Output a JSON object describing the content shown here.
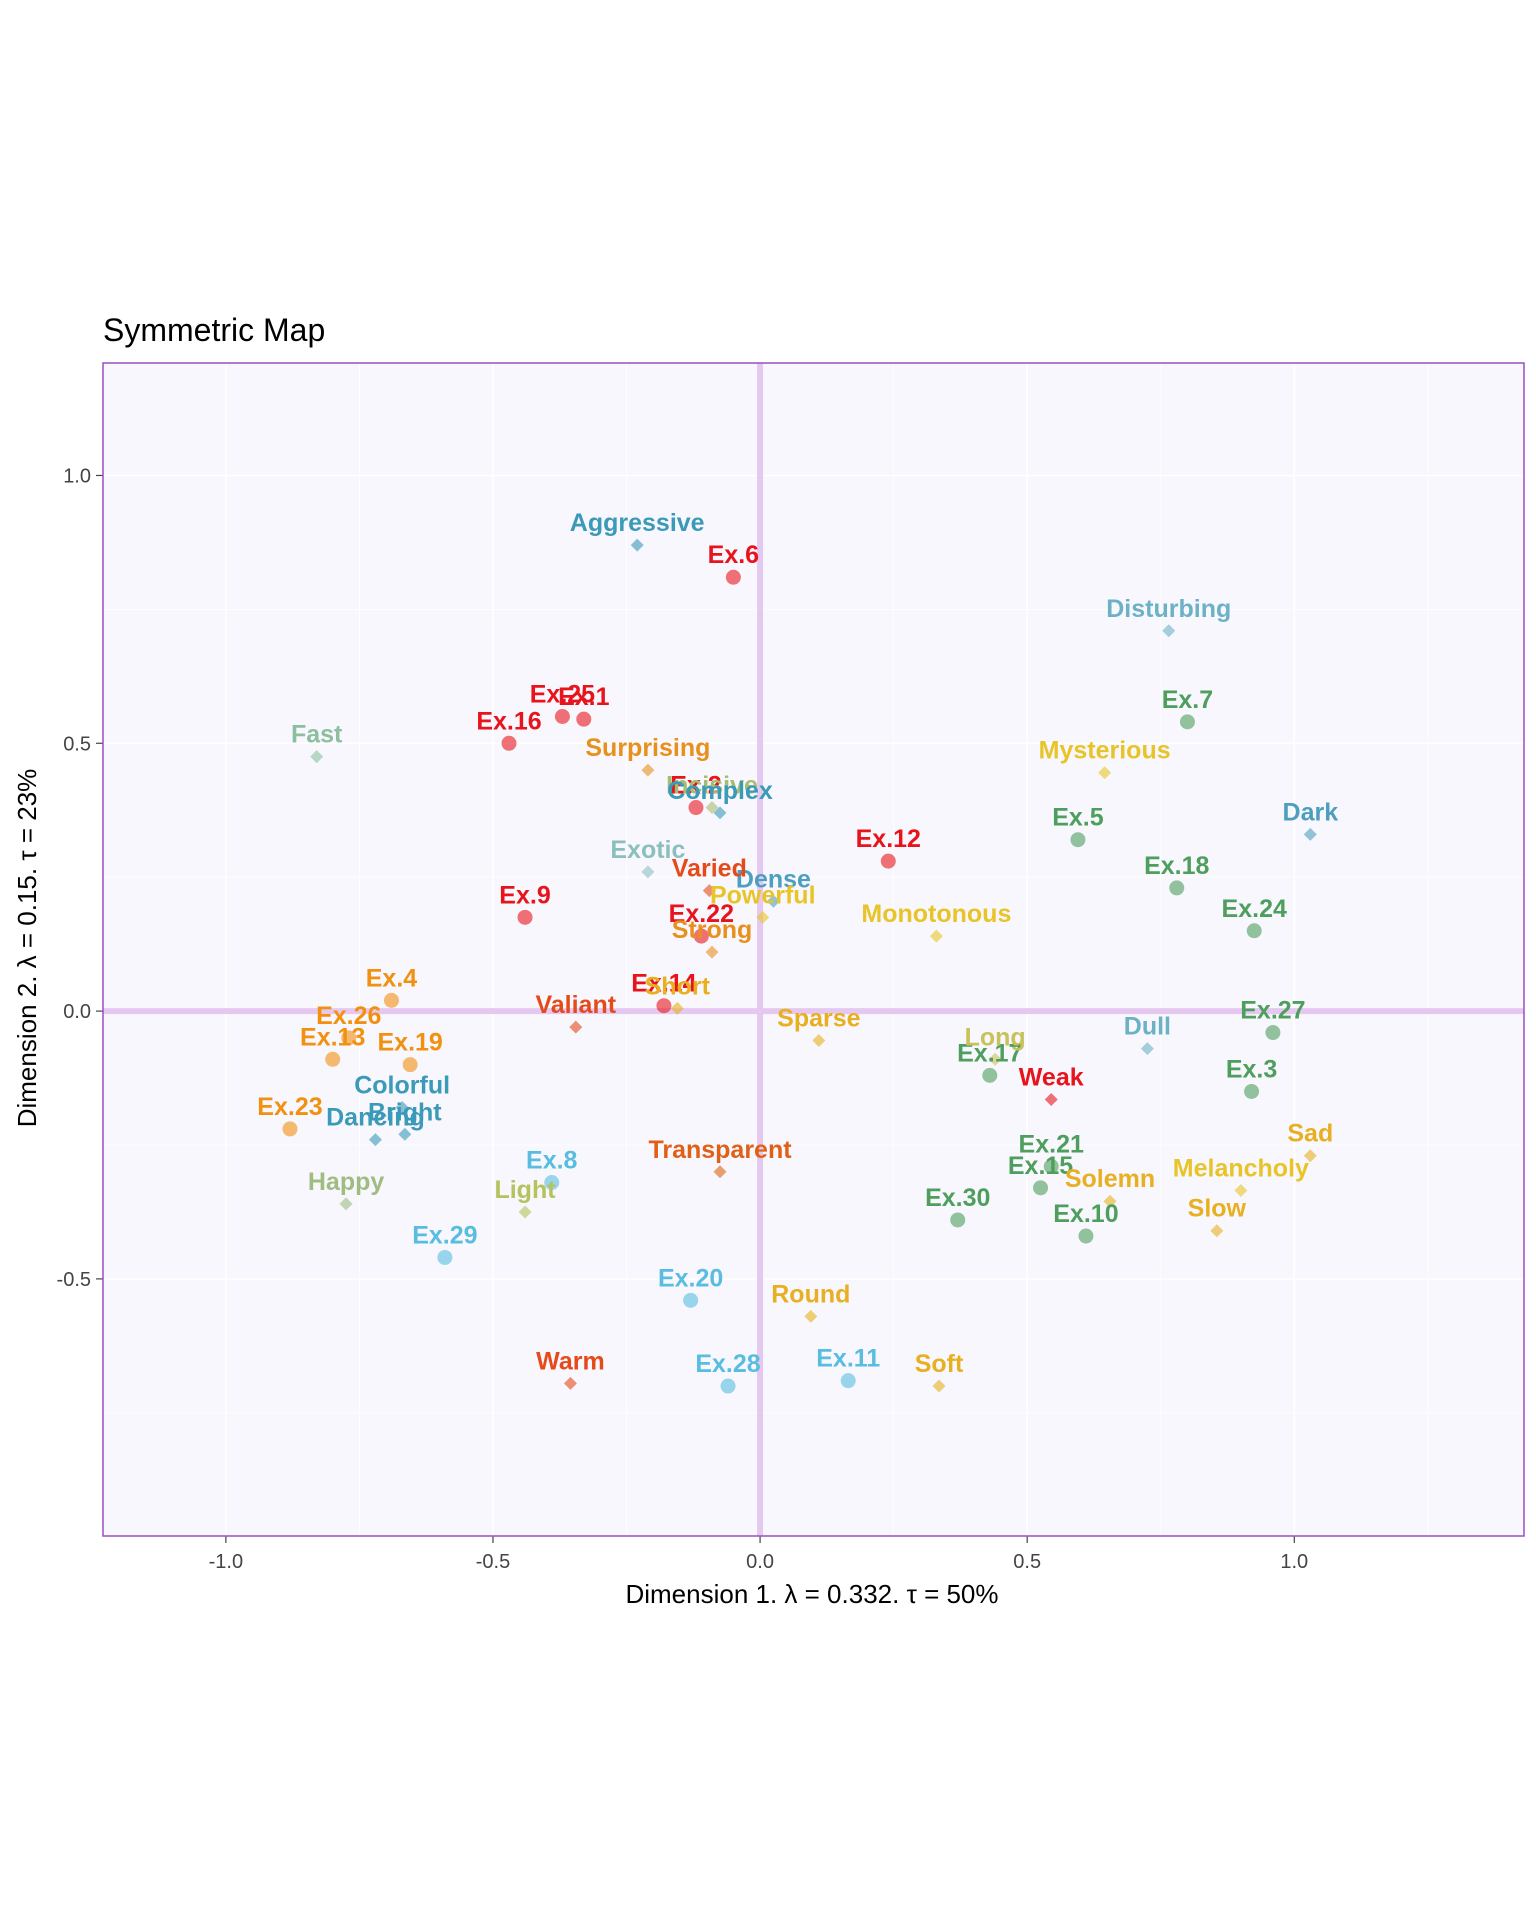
{
  "chart_data": {
    "type": "scatter",
    "title": "Symmetric Map",
    "xlabel": "Dimension 1.   λ = 0.332.  τ = 50%",
    "ylabel": "Dimension 2.   λ = 0.15.  τ = 23%",
    "xlim": [
      -1.23,
      1.43
    ],
    "ylim": [
      -0.98,
      1.21
    ],
    "x_ticks": [
      -1.0,
      -0.5,
      0.0,
      0.5,
      1.0
    ],
    "y_ticks": [
      -0.5,
      0.0,
      0.5,
      1.0
    ],
    "x_tick_labels": [
      "-1.0",
      "-0.5",
      "0.0",
      "0.5",
      "1.0"
    ],
    "y_tick_labels": [
      "-0.5",
      "0.0",
      "0.5",
      "1.0"
    ],
    "grid": true,
    "legend": "none",
    "reference_lines": {
      "x": 0,
      "y": 0
    },
    "colors": {
      "panel_background": "#f8f7fd",
      "panel_border": "#9a4fc4",
      "grid": "#ffffff",
      "reference_line": "#e5c8f0"
    },
    "series": [
      {
        "marker": "circle",
        "points": [
          {
            "label": "Ex.6",
            "x": -0.05,
            "y": 0.81,
            "color": "#e8141c"
          },
          {
            "label": "Ex.25",
            "x": -0.37,
            "y": 0.55,
            "color": "#e8141c"
          },
          {
            "label": "Ex.1",
            "x": -0.33,
            "y": 0.545,
            "color": "#e8141c"
          },
          {
            "label": "Ex.16",
            "x": -0.47,
            "y": 0.5,
            "color": "#e8141c"
          },
          {
            "label": "Ex.2",
            "x": -0.12,
            "y": 0.38,
            "color": "#e8141c"
          },
          {
            "label": "Ex.12",
            "x": 0.24,
            "y": 0.28,
            "color": "#e8141c"
          },
          {
            "label": "Ex.9",
            "x": -0.44,
            "y": 0.175,
            "color": "#e8141c"
          },
          {
            "label": "Ex.22",
            "x": -0.11,
            "y": 0.14,
            "color": "#e8141c"
          },
          {
            "label": "Ex.14",
            "x": -0.18,
            "y": 0.01,
            "color": "#e8141c"
          },
          {
            "label": "Ex.4",
            "x": -0.69,
            "y": 0.02,
            "color": "#f2900f"
          },
          {
            "label": "Ex.26",
            "x": -0.77,
            "y": -0.05,
            "color": "#f2900f"
          },
          {
            "label": "Ex.13",
            "x": -0.8,
            "y": -0.09,
            "color": "#f2900f"
          },
          {
            "label": "Ex.19",
            "x": -0.655,
            "y": -0.1,
            "color": "#f2900f"
          },
          {
            "label": "Ex.23",
            "x": -0.88,
            "y": -0.22,
            "color": "#f2900f"
          },
          {
            "label": "Ex.8",
            "x": -0.39,
            "y": -0.32,
            "color": "#58bde0"
          },
          {
            "label": "Ex.29",
            "x": -0.59,
            "y": -0.46,
            "color": "#58bde0"
          },
          {
            "label": "Ex.20",
            "x": -0.13,
            "y": -0.54,
            "color": "#58bde0"
          },
          {
            "label": "Ex.28",
            "x": -0.06,
            "y": -0.7,
            "color": "#58bde0"
          },
          {
            "label": "Ex.11",
            "x": 0.165,
            "y": -0.69,
            "color": "#58bde0"
          },
          {
            "label": "Ex.7",
            "x": 0.8,
            "y": 0.54,
            "color": "#4e9e5e"
          },
          {
            "label": "Ex.5",
            "x": 0.595,
            "y": 0.32,
            "color": "#4e9e5e"
          },
          {
            "label": "Ex.18",
            "x": 0.78,
            "y": 0.23,
            "color": "#4e9e5e"
          },
          {
            "label": "Ex.24",
            "x": 0.925,
            "y": 0.15,
            "color": "#4e9e5e"
          },
          {
            "label": "Ex.27",
            "x": 0.96,
            "y": -0.04,
            "color": "#4e9e5e"
          },
          {
            "label": "Ex.17",
            "x": 0.43,
            "y": -0.12,
            "color": "#4e9e5e"
          },
          {
            "label": "Ex.3",
            "x": 0.92,
            "y": -0.15,
            "color": "#4e9e5e"
          },
          {
            "label": "Ex.21",
            "x": 0.545,
            "y": -0.29,
            "color": "#4e9e5e"
          },
          {
            "label": "Ex.15",
            "x": 0.525,
            "y": -0.33,
            "color": "#4e9e5e"
          },
          {
            "label": "Ex.30",
            "x": 0.37,
            "y": -0.39,
            "color": "#4e9e5e"
          },
          {
            "label": "Ex.10",
            "x": 0.61,
            "y": -0.42,
            "color": "#4e9e5e"
          }
        ]
      },
      {
        "marker": "diamond",
        "points": [
          {
            "label": "Aggressive",
            "x": -0.23,
            "y": 0.87,
            "color": "#3a9ab8"
          },
          {
            "label": "Disturbing",
            "x": 0.765,
            "y": 0.71,
            "color": "#6cb2c6"
          },
          {
            "label": "Fast",
            "x": -0.83,
            "y": 0.475,
            "color": "#8cbf9e"
          },
          {
            "label": "Surprising",
            "x": -0.21,
            "y": 0.45,
            "color": "#e8901c"
          },
          {
            "label": "Incisive",
            "x": -0.09,
            "y": 0.38,
            "color": "#a7bd6e"
          },
          {
            "label": "Mysterious",
            "x": 0.645,
            "y": 0.445,
            "color": "#e8c428"
          },
          {
            "label": "Dark",
            "x": 1.03,
            "y": 0.33,
            "color": "#4c9fbf"
          },
          {
            "label": "Complex",
            "x": -0.075,
            "y": 0.37,
            "color": "#3a9ab8"
          },
          {
            "label": "Exotic",
            "x": -0.21,
            "y": 0.26,
            "color": "#8bbfbe"
          },
          {
            "label": "Dense",
            "x": 0.025,
            "y": 0.205,
            "color": "#4c9fbf"
          },
          {
            "label": "Varied",
            "x": -0.095,
            "y": 0.225,
            "color": "#e54b1a"
          },
          {
            "label": "Powerful",
            "x": 0.005,
            "y": 0.175,
            "color": "#e8c428"
          },
          {
            "label": "Monotonous",
            "x": 0.33,
            "y": 0.14,
            "color": "#e8c428"
          },
          {
            "label": "Strong",
            "x": -0.09,
            "y": 0.11,
            "color": "#e8901c"
          },
          {
            "label": "Short",
            "x": -0.155,
            "y": 0.005,
            "color": "#e8b020"
          },
          {
            "label": "Valiant",
            "x": -0.345,
            "y": -0.03,
            "color": "#e54b1a"
          },
          {
            "label": "Sparse",
            "x": 0.11,
            "y": -0.055,
            "color": "#e8b020"
          },
          {
            "label": "Long",
            "x": 0.44,
            "y": -0.09,
            "color": "#c8c25a"
          },
          {
            "label": "Dull",
            "x": 0.725,
            "y": -0.07,
            "color": "#6cb2c6"
          },
          {
            "label": "Colorful",
            "x": -0.67,
            "y": -0.18,
            "color": "#3a9ab8"
          },
          {
            "label": "Bright",
            "x": -0.665,
            "y": -0.23,
            "color": "#3a9ab8"
          },
          {
            "label": "Dancing",
            "x": -0.72,
            "y": -0.24,
            "color": "#3a9ab8"
          },
          {
            "label": "Weak",
            "x": 0.545,
            "y": -0.165,
            "color": "#e8141c"
          },
          {
            "label": "Sad",
            "x": 1.03,
            "y": -0.27,
            "color": "#e8b020"
          },
          {
            "label": "Transparent",
            "x": -0.075,
            "y": -0.3,
            "color": "#e06018"
          },
          {
            "label": "Happy",
            "x": -0.775,
            "y": -0.36,
            "color": "#9fbd83"
          },
          {
            "label": "Light",
            "x": -0.44,
            "y": -0.375,
            "color": "#b5c25e"
          },
          {
            "label": "Melancholy",
            "x": 0.9,
            "y": -0.335,
            "color": "#e8c428"
          },
          {
            "label": "Solemn",
            "x": 0.655,
            "y": -0.355,
            "color": "#e8b020"
          },
          {
            "label": "Slow",
            "x": 0.855,
            "y": -0.41,
            "color": "#e8b020"
          },
          {
            "label": "Round",
            "x": 0.095,
            "y": -0.57,
            "color": "#e8b020"
          },
          {
            "label": "Soft",
            "x": 0.335,
            "y": -0.7,
            "color": "#e8b020"
          },
          {
            "label": "Warm",
            "x": -0.355,
            "y": -0.695,
            "color": "#e54b1a"
          }
        ]
      }
    ]
  }
}
